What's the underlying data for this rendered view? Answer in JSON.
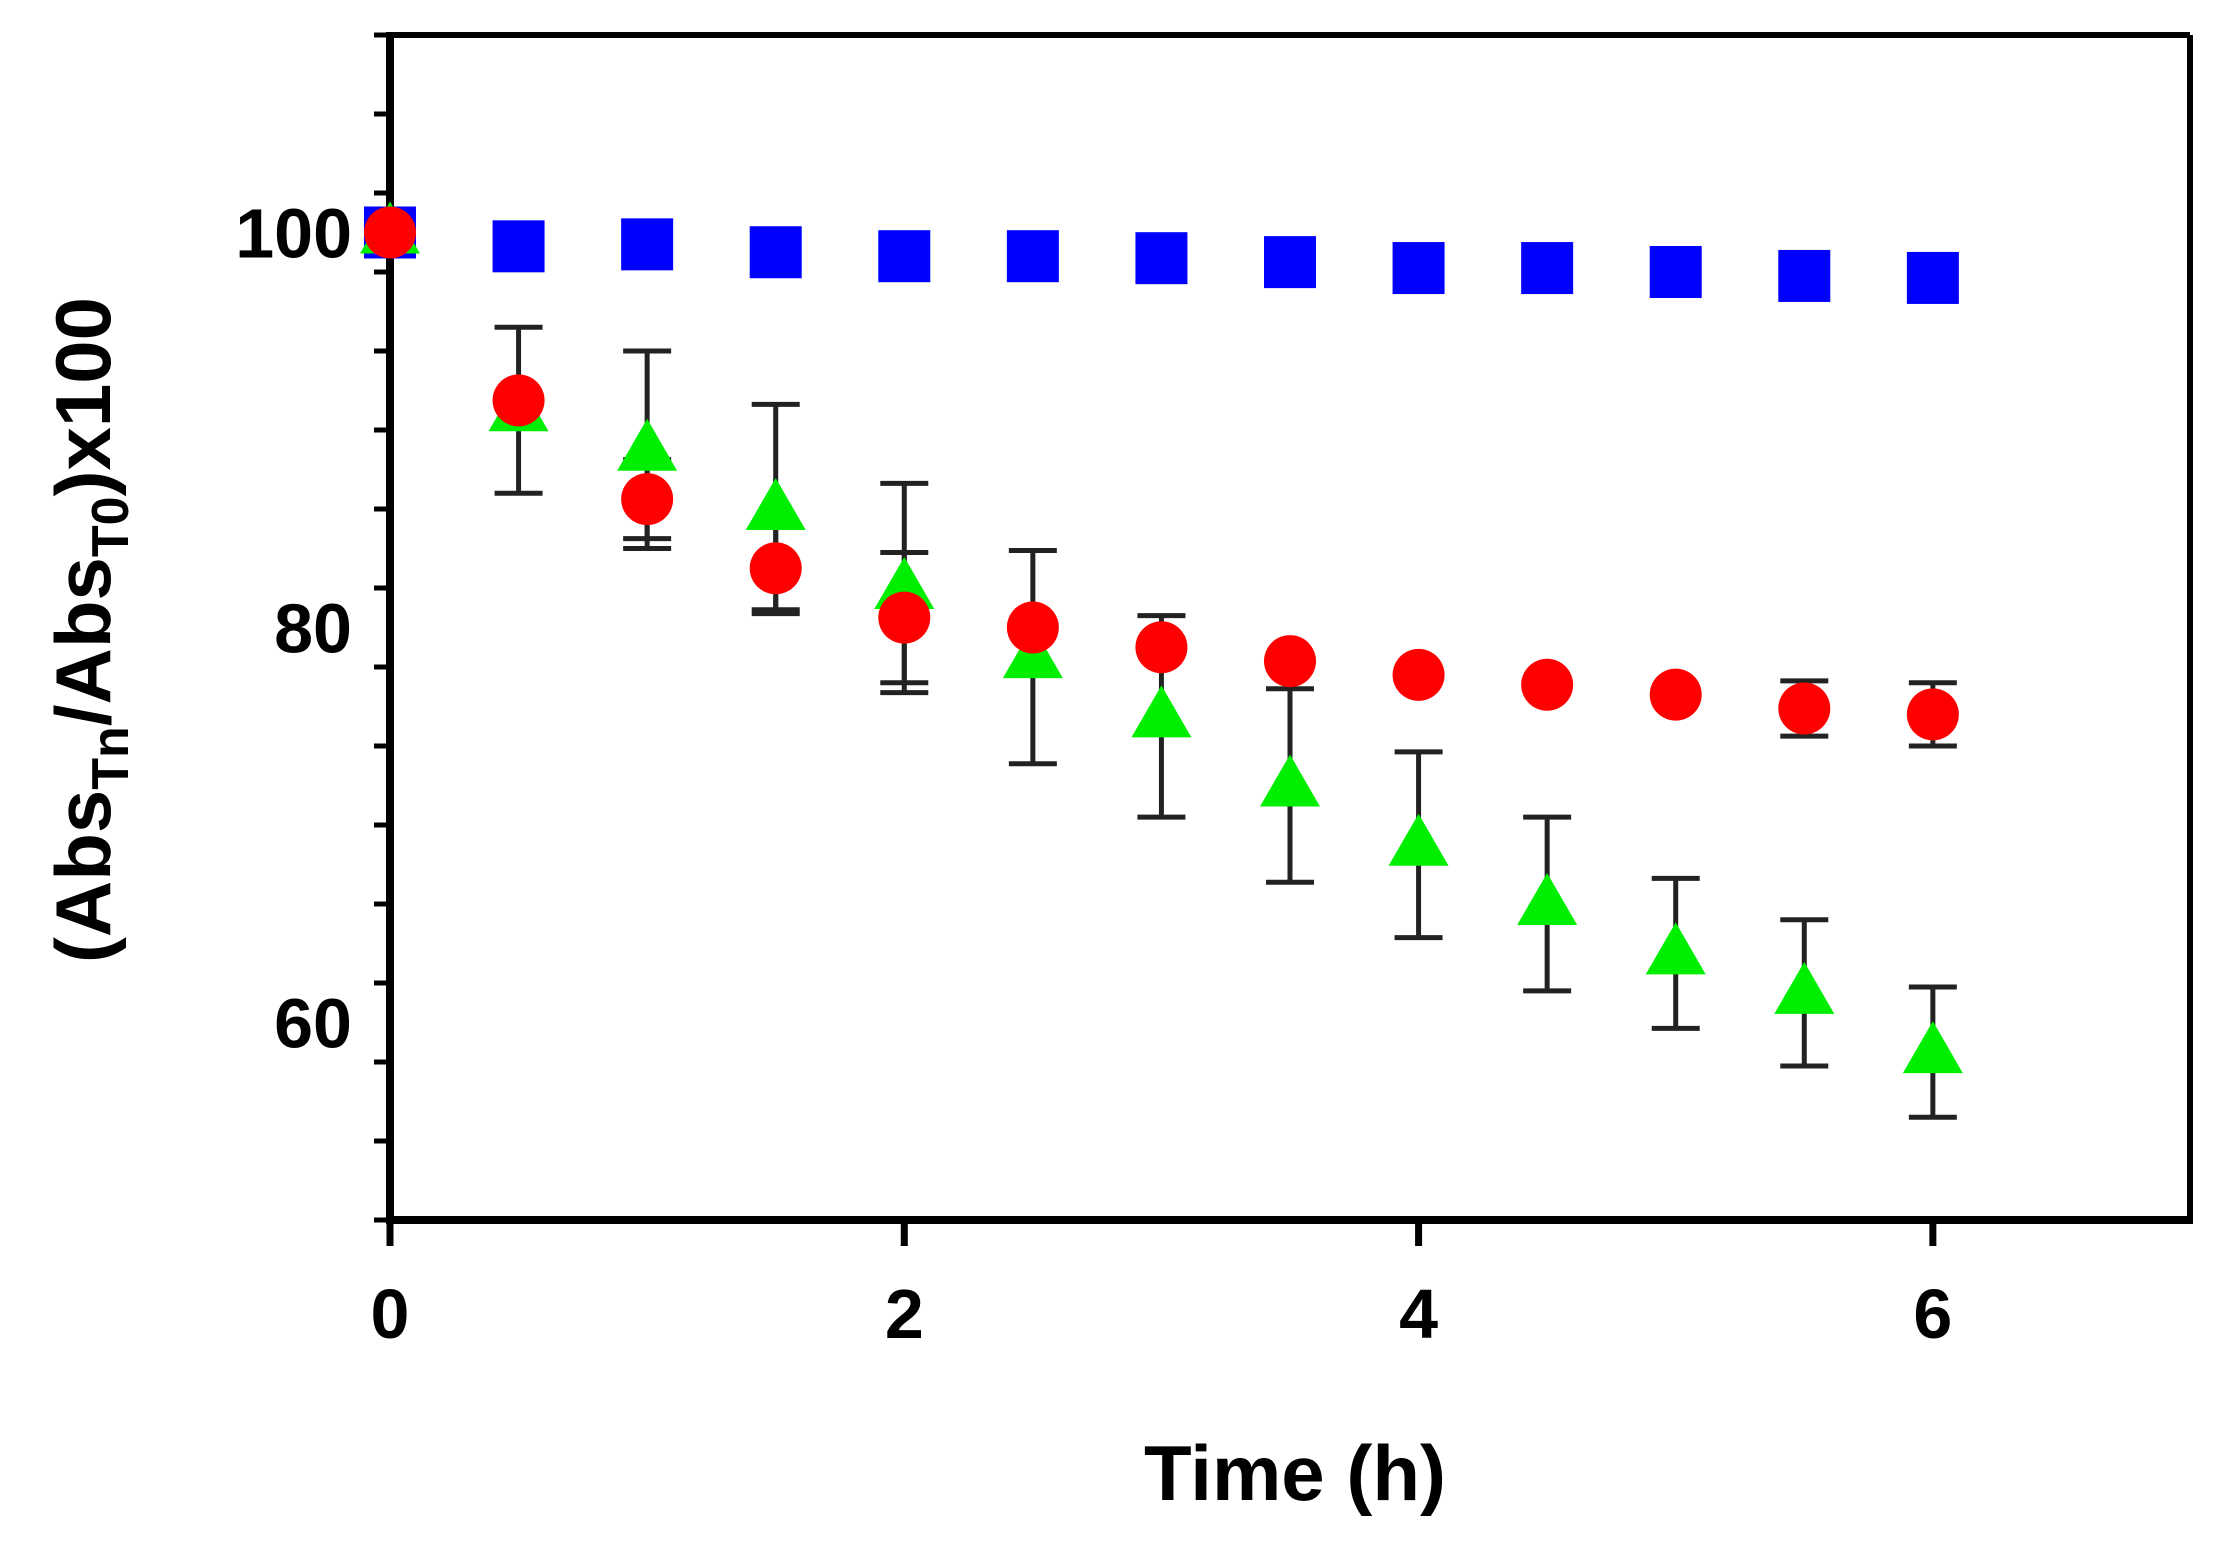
{
  "chart_data": {
    "type": "scatter",
    "title": "",
    "xlabel": "Time (h)",
    "ylabel": {
      "prefix": "(Abs",
      "sub1": "Tn",
      "middle": "/Abs",
      "sub2": "T0",
      "suffix": ")x100"
    },
    "xlim": [
      0,
      7
    ],
    "ylim": [
      50,
      110
    ],
    "xticks": [
      0,
      2,
      4,
      6
    ],
    "xtick_labels": [
      "0",
      "2",
      "4",
      "6"
    ],
    "yticks": [
      60,
      80,
      100
    ],
    "ytick_labels": [
      "60",
      "80",
      "100"
    ],
    "grid": false,
    "legend": "none",
    "x": [
      0,
      0.5,
      1,
      1.5,
      2,
      2.5,
      3,
      3.5,
      4,
      4.5,
      5,
      5.5,
      6
    ],
    "series": [
      {
        "name": "blue squares",
        "marker": "square",
        "color": "#0000ff",
        "values": [
          100,
          99.3,
          99.4,
          99.0,
          98.8,
          98.8,
          98.7,
          98.5,
          98.2,
          98.2,
          98.0,
          97.8,
          97.7
        ],
        "errors": [
          0,
          0,
          0,
          0,
          0,
          0,
          0,
          0,
          0,
          0,
          0,
          0,
          0
        ]
      },
      {
        "name": "green triangles",
        "marker": "triangle",
        "color": "#00ee00",
        "values": [
          100,
          91.0,
          89.0,
          86.0,
          82.0,
          78.5,
          75.5,
          72.0,
          69.0,
          66.0,
          63.5,
          61.5,
          58.5
        ],
        "errors": [
          0,
          4.2,
          5.0,
          5.3,
          5.3,
          5.4,
          5.1,
          4.9,
          4.7,
          4.4,
          3.8,
          3.7,
          3.3
        ]
      },
      {
        "name": "red circles",
        "marker": "circle",
        "color": "#ff0000",
        "values": [
          100,
          91.5,
          86.5,
          83.0,
          80.5,
          80.0,
          79.0,
          78.3,
          77.6,
          77.1,
          76.6,
          75.9,
          75.6
        ],
        "errors": [
          0,
          0,
          2.0,
          2.1,
          3.3,
          0,
          0,
          0,
          0,
          0,
          0,
          1.4,
          1.6
        ]
      }
    ]
  }
}
